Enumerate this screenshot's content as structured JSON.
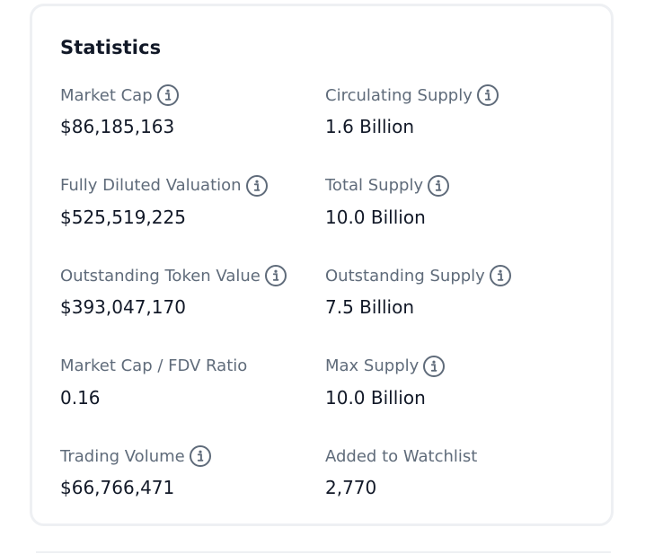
{
  "statistics": {
    "title": "Statistics",
    "items": [
      {
        "label": "Market Cap",
        "value": "$86,185,163",
        "info": true
      },
      {
        "label": "Circulating Supply",
        "value": "1.6 Billion",
        "info": true
      },
      {
        "label": "Fully Diluted Valuation",
        "value": "$525,519,225",
        "info": true
      },
      {
        "label": "Total Supply",
        "value": "10.0 Billion",
        "info": true
      },
      {
        "label": "Outstanding Token Value",
        "value": "$393,047,170",
        "info": true
      },
      {
        "label": "Outstanding Supply",
        "value": "7.5 Billion",
        "info": true
      },
      {
        "label": "Market Cap / FDV Ratio",
        "value": "0.16",
        "info": false
      },
      {
        "label": "Max Supply",
        "value": "10.0 Billion",
        "info": true
      },
      {
        "label": "Trading Volume",
        "value": "$66,766,471",
        "info": true
      },
      {
        "label": "Added to Watchlist",
        "value": "2,770",
        "info": false
      }
    ]
  },
  "icons": {
    "info": "info-circle-icon"
  },
  "colors": {
    "label": "#5f6b7a",
    "value": "#111827",
    "border": "#eef0f3"
  }
}
